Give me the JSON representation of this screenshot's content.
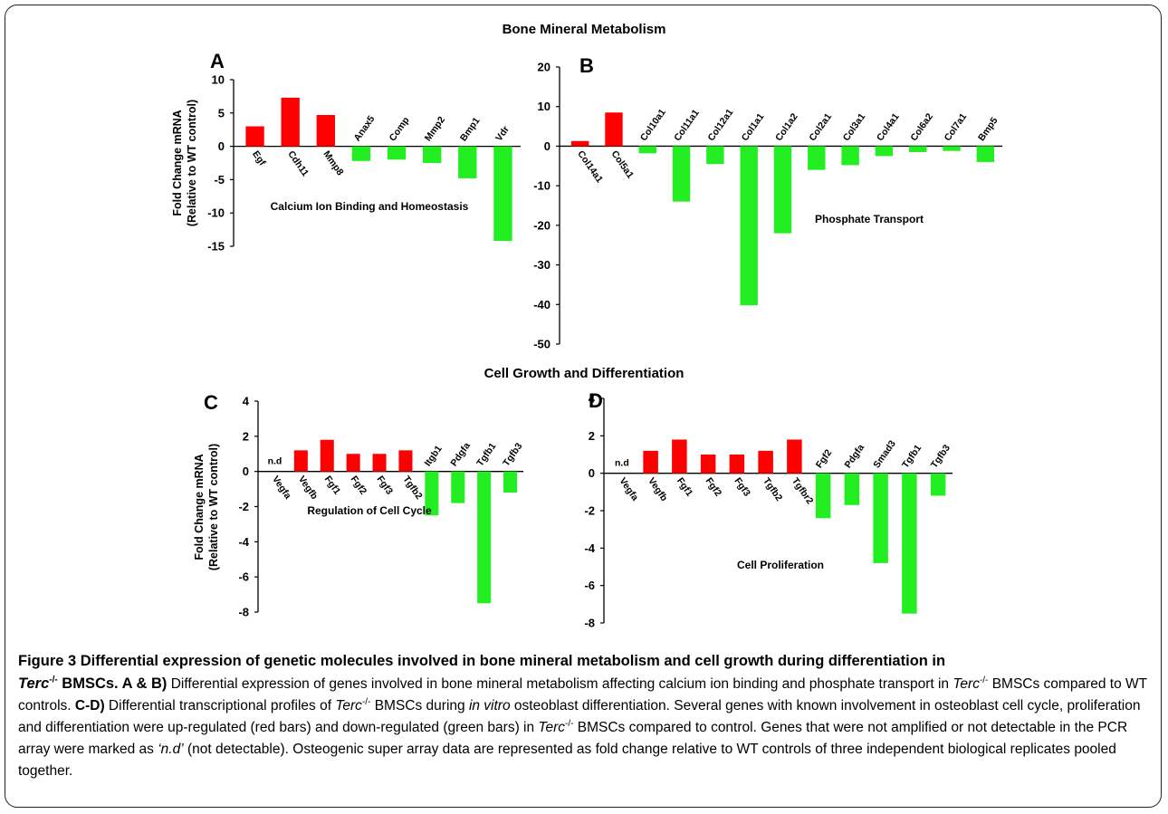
{
  "colors": {
    "up": "#ff0000",
    "down": "#22ee22",
    "axis": "#000000"
  },
  "figure": {
    "top_title": "Bone Mineral Metabolism",
    "mid_title": "Cell Growth and Differentiation"
  },
  "chart_data": [
    {
      "panel": "A",
      "type": "bar",
      "ylabel_line1": "Fold Change mRNA",
      "ylabel_line2": "(Relative to WT control)",
      "yticks": [
        10,
        5,
        0,
        -5,
        -10,
        -15
      ],
      "ylim": [
        -15,
        10
      ],
      "categories": [
        "Egf",
        "Cdh11",
        "Mmp8",
        "Anax5",
        "Comp",
        "Mmp2",
        "Bmp1",
        "Vdr"
      ],
      "values": [
        3,
        7.3,
        4.7,
        -2.2,
        -2,
        -2.5,
        -4.8,
        -14.2
      ],
      "note": "Calcium Ion Binding and Homeostasis"
    },
    {
      "panel": "B",
      "type": "bar",
      "ylabel_line1": "",
      "ylabel_line2": "",
      "yticks": [
        20,
        10,
        0,
        -10,
        -20,
        -30,
        -40,
        -50
      ],
      "ylim": [
        -50,
        20
      ],
      "categories": [
        "Col14a1",
        "Col5a1",
        "Col10a1",
        "Col11a1",
        "Col12a1",
        "Col1a1",
        "Col1a2",
        "Col2a1",
        "Col3a1",
        "Col4a1",
        "Col6a2",
        "Col7a1",
        "Bmp5"
      ],
      "values": [
        1.3,
        8.5,
        -1.8,
        -14,
        -4.5,
        -40.2,
        -22,
        -6,
        -4.8,
        -2.5,
        -1.5,
        -1.2,
        -4
      ],
      "note": "Phosphate Transport"
    },
    {
      "panel": "C",
      "type": "bar",
      "ylabel_line1": "Fold Change mRNA",
      "ylabel_line2": "(Relative to WT control)",
      "yticks": [
        4,
        2,
        0,
        -2,
        -4,
        -6,
        -8
      ],
      "ylim": [
        -8,
        4
      ],
      "categories": [
        "Vegfa",
        "Vegfb",
        "Fgf1",
        "Fgf2",
        "Fgf3",
        "Tgfb2",
        "Itgb1",
        "Pdgfa",
        "Tgfb1",
        "Tgfb3"
      ],
      "values": [
        null,
        1.2,
        1.8,
        1,
        1,
        1.2,
        -2.5,
        -1.8,
        -7.5,
        -1.2
      ],
      "nd_label": "n.d",
      "note": "Regulation of Cell Cycle"
    },
    {
      "panel": "D",
      "type": "bar",
      "ylabel_line1": "",
      "ylabel_line2": "",
      "yticks": [
        4,
        2,
        0,
        -2,
        -4,
        -6,
        -8
      ],
      "ylim": [
        -8,
        4
      ],
      "categories": [
        "Vegfa",
        "Vegfb",
        "Fgf1",
        "Fgf2",
        "Fgf3",
        "Tgfb2",
        "Tgfbr2",
        "Fgf2",
        "Pdgfa",
        "Smad3",
        "Tgfb1",
        "Tgfb3"
      ],
      "values": [
        null,
        1.2,
        1.8,
        1,
        1,
        1.2,
        1.8,
        -2.4,
        -1.7,
        -4.8,
        -7.5,
        -1.2
      ],
      "nd_label": "n.d",
      "note": "Cell Proliferation"
    }
  ],
  "caption": {
    "title_part1": "Figure 3 Differential expression of genetic molecules involved in bone mineral metabolism and cell growth during differentiation in",
    "gene": "Terc",
    "gene_sup": "-/-",
    "title_part2": " BMSCs.",
    "ab_label": " A & B)",
    "ab_text_1": " Differential expression of genes involved in bone mineral metabolism affecting calcium ion binding and phosphate transport in ",
    "ab_text_2": " BMSCs compared to WT controls.",
    "cd_label": " C-D)",
    "cd_text_1": " Differential transcriptional profiles of ",
    "cd_text_2": " BMSCs during ",
    "in_vitro": "in vitro",
    "cd_text_3": " osteoblast differentiation. Several genes with known involvement in osteoblast cell cycle, proliferation and differentiation were up-regulated (red bars) and down-regulated (green bars) in ",
    "cd_text_4": " BMSCs compared to control. Genes that were not amplified or not detectable in the PCR array were marked as ",
    "nd_quote": "‘n.d’",
    "cd_text_5": " (not detectable). Osteogenic super array data are represented as fold change relative to WT controls of three independent biological replicates pooled together."
  }
}
